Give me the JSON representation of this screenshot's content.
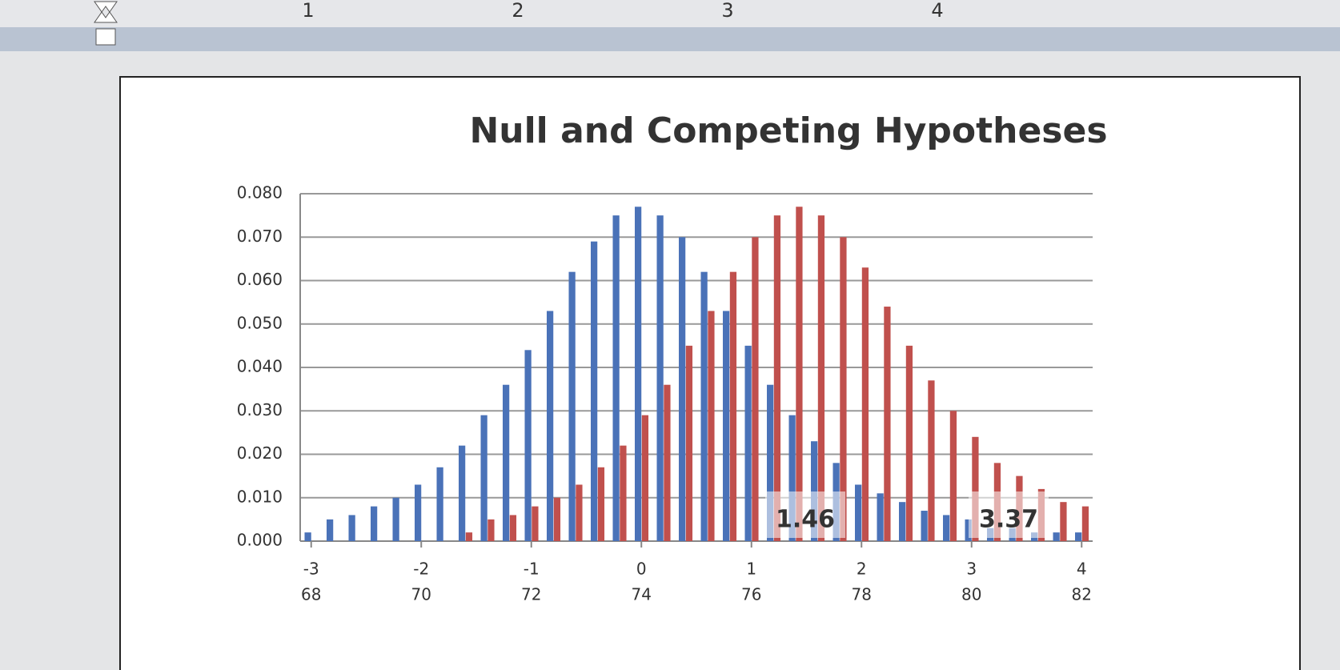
{
  "ruler_labels": [
    "1",
    "2",
    "3",
    "4"
  ],
  "chart_data": {
    "type": "bar",
    "title": "Null and Competing Hypotheses",
    "categories": [
      "-3",
      null,
      null,
      null,
      null,
      "-2",
      null,
      null,
      null,
      null,
      "-1",
      null,
      null,
      null,
      null,
      "0",
      null,
      null,
      null,
      null,
      "1",
      null,
      null,
      null,
      null,
      "2",
      null,
      null,
      null,
      null,
      "3",
      null,
      null,
      null,
      null,
      "4"
    ],
    "categories2": [
      "68",
      null,
      null,
      null,
      null,
      "70",
      null,
      null,
      null,
      null,
      "72",
      null,
      null,
      null,
      null,
      "74",
      null,
      null,
      null,
      null,
      "76",
      null,
      null,
      null,
      null,
      "78",
      null,
      null,
      null,
      null,
      "80",
      null,
      null,
      null,
      null,
      "82"
    ],
    "series": [
      {
        "color": "#4a72b8",
        "values": [
          0.002,
          0.005,
          0.006,
          0.008,
          0.01,
          0.013,
          0.017,
          0.022,
          0.029,
          0.036,
          0.044,
          0.053,
          0.062,
          0.069,
          0.075,
          0.077,
          0.075,
          0.07,
          0.062,
          0.053,
          0.045,
          0.036,
          0.029,
          0.023,
          0.018,
          0.013,
          0.011,
          0.009,
          0.007,
          0.006,
          0.005,
          0.003,
          0.003,
          0.002,
          0.002,
          0.002
        ]
      },
      {
        "color": "#c0504d",
        "values": [
          0,
          0,
          0,
          0,
          0,
          0,
          0,
          0.002,
          0.005,
          0.006,
          0.008,
          0.01,
          0.013,
          0.017,
          0.022,
          0.029,
          0.036,
          0.045,
          0.053,
          0.062,
          0.07,
          0.075,
          0.077,
          0.075,
          0.07,
          0.063,
          0.054,
          0.045,
          0.037,
          0.03,
          0.024,
          0.018,
          0.015,
          0.012,
          0.009,
          0.008
        ]
      }
    ],
    "annotations": [
      "1.46",
      "3.37"
    ],
    "ylim": [
      0,
      0.08
    ],
    "yticks": [
      {
        "value": 0,
        "label": "0.000"
      },
      {
        "value": 0.01,
        "label": "0.010"
      },
      {
        "value": 0.02,
        "label": "0.020"
      },
      {
        "value": 0.03,
        "label": "0.030"
      },
      {
        "value": 0.04,
        "label": "0.040"
      },
      {
        "value": 0.05,
        "label": "0.050"
      },
      {
        "value": 0.06,
        "label": "0.060"
      },
      {
        "value": 0.07,
        "label": "0.070"
      },
      {
        "value": 0.08,
        "label": "0.080"
      }
    ],
    "grid": true
  }
}
